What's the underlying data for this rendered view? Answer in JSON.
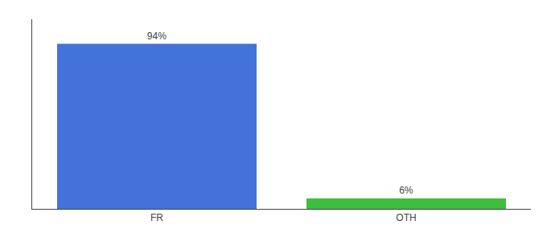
{
  "chart_data": {
    "type": "bar",
    "categories": [
      "FR",
      "OTH"
    ],
    "values": [
      94,
      6
    ],
    "value_labels": [
      "94%",
      "6%"
    ],
    "data_labels": true,
    "colors": [
      "#4472db",
      "#3dbf3d"
    ],
    "ylim": [
      0,
      108
    ],
    "tick_labels": "x",
    "grid": false
  }
}
